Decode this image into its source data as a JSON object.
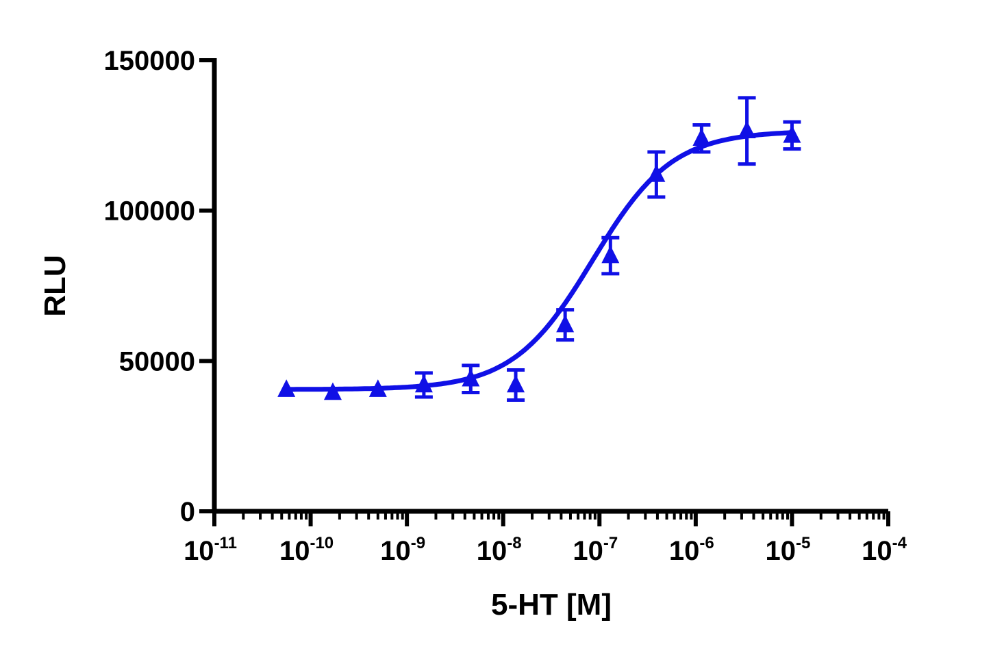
{
  "chart_data": {
    "type": "scatter",
    "title": "",
    "xlabel": "5-HT [M]",
    "ylabel": "RLU",
    "x_scale": "log",
    "xlim": [
      1e-11,
      0.0001
    ],
    "ylim": [
      0,
      150000
    ],
    "y_ticks": [
      0,
      50000,
      100000,
      150000
    ],
    "y_tick_labels": [
      "0",
      "50000",
      "100000",
      "150000"
    ],
    "x_ticks": [
      {
        "base": "10",
        "exp": "-11",
        "value": 1e-11
      },
      {
        "base": "10",
        "exp": "-10",
        "value": 1e-10
      },
      {
        "base": "10",
        "exp": "-9",
        "value": 1e-09
      },
      {
        "base": "10",
        "exp": "-8",
        "value": 1e-08
      },
      {
        "base": "10",
        "exp": "-7",
        "value": 1e-07
      },
      {
        "base": "10",
        "exp": "-6",
        "value": 1e-06
      },
      {
        "base": "10",
        "exp": "-5",
        "value": 1e-05
      },
      {
        "base": "10",
        "exp": "-4",
        "value": 0.0001
      }
    ],
    "grid": false,
    "series": [
      {
        "color": "#1010e6",
        "marker": "triangle",
        "x": [
          5.6e-11,
          1.7e-10,
          5e-10,
          1.5e-09,
          4.6e-09,
          1.35e-08,
          4.4e-08,
          1.3e-07,
          3.9e-07,
          1.15e-06,
          3.4e-06,
          1e-05
        ],
        "y": [
          40500,
          39500,
          40500,
          42000,
          44000,
          42000,
          62000,
          85000,
          112000,
          124000,
          126500,
          125000
        ],
        "error": [
          0,
          0,
          0,
          4000,
          4500,
          5000,
          5000,
          6000,
          7500,
          4500,
          11000,
          4500
        ]
      }
    ],
    "fit_curve": {
      "model": "four-parameter logistic",
      "bottom": 40500,
      "top": 126500,
      "ec50": 8.5e-08,
      "hill": 1.05,
      "x_range": [
        5.6e-11,
        1e-05
      ],
      "color": "#1010e6"
    }
  }
}
